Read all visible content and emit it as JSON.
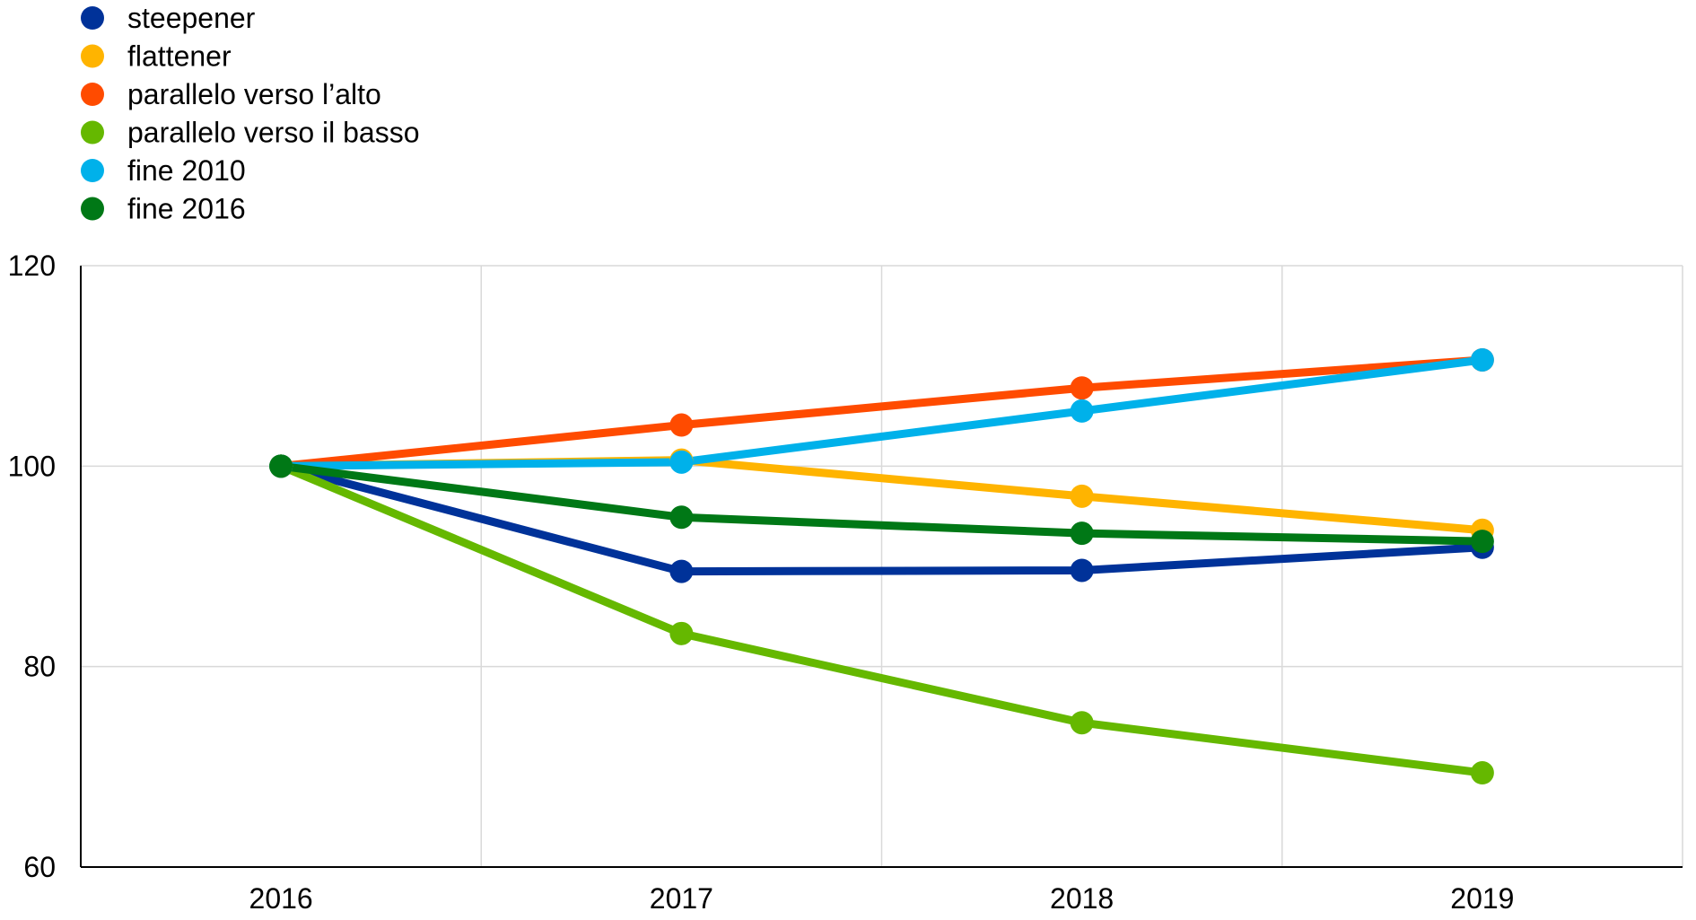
{
  "chart_data": {
    "type": "line",
    "title": "",
    "xlabel": "",
    "ylabel": "",
    "categories": [
      "2016",
      "2017",
      "2018",
      "2019"
    ],
    "ylim": [
      60,
      120
    ],
    "yticks": [
      60,
      80,
      100,
      120
    ],
    "grid": true,
    "legend_position": "top-left",
    "series": [
      {
        "name": "steepener",
        "color": "#003299",
        "values": [
          100,
          89.5,
          89.6,
          91.9
        ]
      },
      {
        "name": "flattener",
        "color": "#FFB400",
        "values": [
          100,
          100.6,
          97.0,
          93.6
        ]
      },
      {
        "name": "parallelo verso l’alto",
        "color": "#FF4B00",
        "values": [
          100,
          104.1,
          107.8,
          110.6
        ]
      },
      {
        "name": "parallelo verso il basso",
        "color": "#65B800",
        "values": [
          100,
          83.3,
          74.4,
          69.4
        ]
      },
      {
        "name": "fine 2010",
        "color": "#00B1EA",
        "values": [
          100,
          100.4,
          105.5,
          110.6
        ]
      },
      {
        "name": "fine 2016",
        "color": "#007816",
        "values": [
          100,
          94.9,
          93.3,
          92.5
        ]
      }
    ]
  }
}
